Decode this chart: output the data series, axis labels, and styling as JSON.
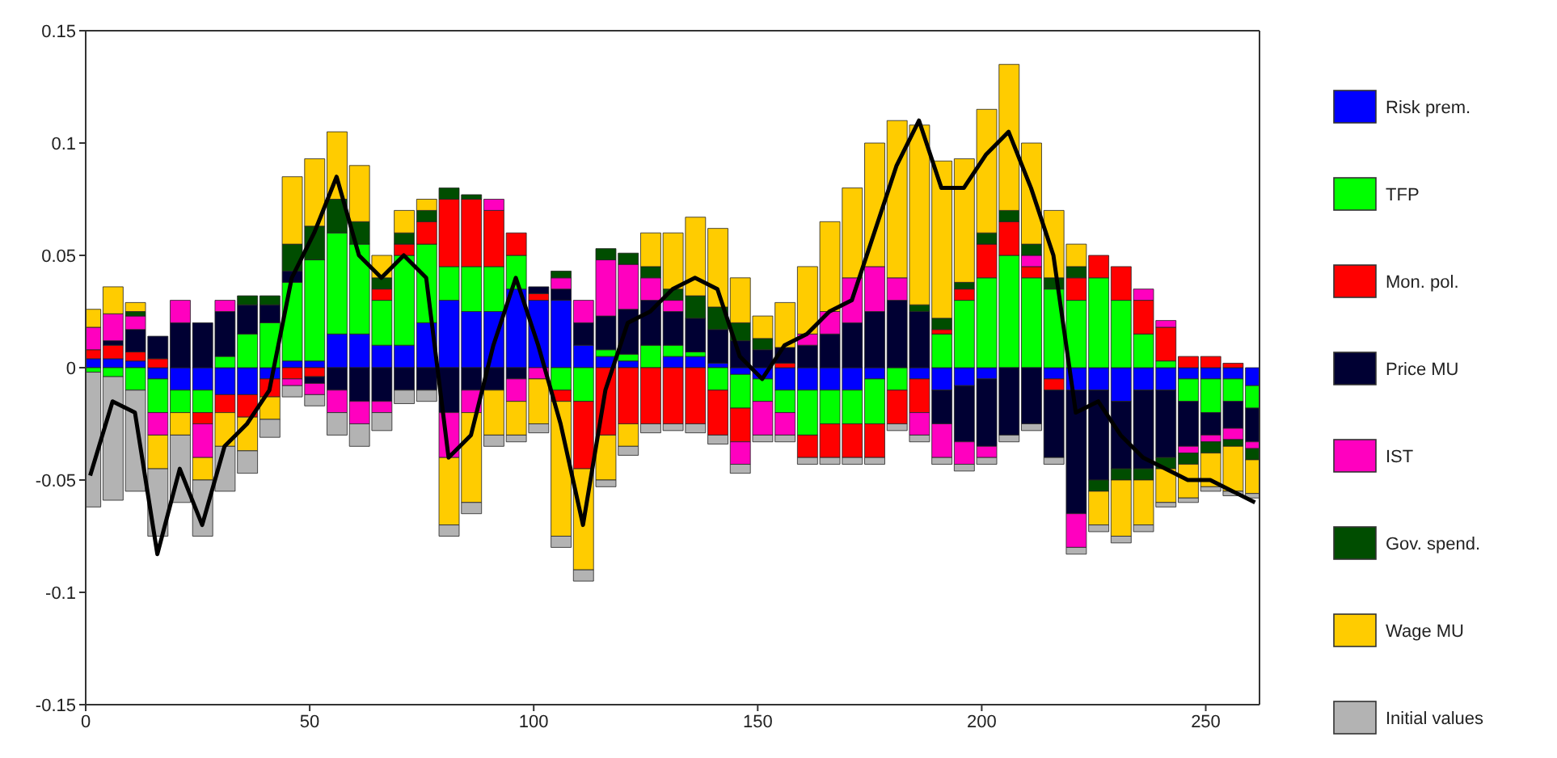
{
  "chart_data": {
    "type": "bar",
    "stacked": true,
    "legend": "right",
    "xlim": [
      0,
      262
    ],
    "xticks": [
      0,
      50,
      100,
      150,
      200,
      250
    ],
    "ylim": [
      -0.15,
      0.15
    ],
    "yticks": [
      -0.15,
      -0.1,
      -0.05,
      0,
      0.05,
      0.1,
      0.15
    ],
    "x": [
      1,
      6,
      11,
      16,
      21,
      26,
      31,
      36,
      41,
      46,
      51,
      56,
      61,
      66,
      71,
      76,
      81,
      86,
      91,
      96,
      101,
      106,
      111,
      116,
      121,
      126,
      131,
      136,
      141,
      146,
      151,
      156,
      161,
      166,
      171,
      176,
      181,
      186,
      191,
      196,
      201,
      206,
      211,
      216,
      221,
      226,
      231,
      236,
      241,
      246,
      251,
      256,
      261
    ],
    "series": [
      {
        "name": "Risk prem.",
        "color": "#0000ff",
        "values": [
          0.004,
          0.004,
          0.003,
          -0.005,
          -0.01,
          -0.01,
          -0.012,
          -0.012,
          -0.005,
          0.003,
          0.003,
          0.015,
          0.015,
          0.01,
          0.01,
          0.02,
          0.03,
          0.025,
          0.025,
          0.035,
          0.03,
          0.03,
          0.01,
          0.005,
          0.003,
          0,
          0.005,
          0.005,
          0.002,
          -0.003,
          -0.005,
          -0.01,
          -0.01,
          -0.01,
          -0.01,
          -0.005,
          0,
          -0.005,
          -0.01,
          -0.008,
          -0.005,
          0,
          0,
          -0.005,
          -0.01,
          -0.01,
          -0.015,
          -0.01,
          -0.01,
          -0.005,
          -0.005,
          -0.005,
          -0.008
        ]
      },
      {
        "name": "TFP",
        "color": "#00ff00",
        "values": [
          -0.002,
          -0.004,
          -0.01,
          -0.015,
          -0.01,
          -0.01,
          0.005,
          0.015,
          0.02,
          0.035,
          0.045,
          0.045,
          0.04,
          0.02,
          0.04,
          0.035,
          0.015,
          0.02,
          0.02,
          0.015,
          0,
          -0.01,
          -0.015,
          0.003,
          0.003,
          0.01,
          0.005,
          0.002,
          -0.01,
          -0.015,
          -0.01,
          -0.01,
          -0.02,
          -0.015,
          -0.015,
          -0.02,
          -0.01,
          0,
          0.015,
          0.03,
          0.04,
          0.05,
          0.04,
          0.035,
          0.03,
          0.04,
          0.03,
          0.015,
          0.003,
          -0.01,
          -0.015,
          -0.01,
          -0.01
        ]
      },
      {
        "name": "Mon. pol.",
        "color": "#ff0000",
        "values": [
          0.004,
          0.006,
          0.004,
          0.004,
          0,
          -0.005,
          -0.008,
          -0.01,
          -0.008,
          -0.005,
          -0.004,
          0,
          0,
          0.005,
          0.005,
          0.01,
          0.03,
          0.03,
          0.025,
          0.01,
          0.003,
          -0.005,
          -0.03,
          -0.03,
          -0.025,
          -0.025,
          -0.025,
          -0.025,
          -0.02,
          -0.015,
          0,
          0.002,
          -0.01,
          -0.015,
          -0.015,
          -0.015,
          -0.015,
          -0.015,
          0.002,
          0.005,
          0.015,
          0.015,
          0.005,
          -0.005,
          0.01,
          0.01,
          0.015,
          0.015,
          0.015,
          0.005,
          0.005,
          0.002,
          0
        ]
      },
      {
        "name": "Price MU",
        "color": "#000033",
        "values": [
          0,
          0.002,
          0.01,
          0.01,
          0.02,
          0.02,
          0.02,
          0.013,
          0.008,
          0.005,
          -0.003,
          -0.01,
          -0.015,
          -0.015,
          -0.01,
          -0.01,
          -0.02,
          -0.01,
          -0.01,
          -0.005,
          0.003,
          0.005,
          0.01,
          0.015,
          0.02,
          0.02,
          0.015,
          0.015,
          0.015,
          0.012,
          0.008,
          0.007,
          0.01,
          0.015,
          0.02,
          0.025,
          0.03,
          0.025,
          -0.015,
          -0.025,
          -0.03,
          -0.03,
          -0.025,
          -0.03,
          -0.055,
          -0.04,
          -0.03,
          -0.035,
          -0.03,
          -0.02,
          -0.01,
          -0.012,
          -0.015
        ]
      },
      {
        "name": "IST",
        "color": "#ff00bf",
        "values": [
          0.01,
          0.012,
          0.006,
          -0.01,
          0.01,
          -0.015,
          0.005,
          0,
          0,
          -0.003,
          -0.005,
          -0.01,
          -0.01,
          -0.005,
          0,
          0,
          -0.02,
          -0.01,
          0.005,
          -0.01,
          -0.005,
          0.005,
          0.01,
          0.025,
          0.02,
          0.01,
          0.005,
          0,
          0,
          -0.01,
          -0.015,
          -0.01,
          0.005,
          0.01,
          0.02,
          0.02,
          0.01,
          -0.01,
          -0.015,
          -0.01,
          -0.005,
          0,
          0.005,
          0,
          -0.015,
          0,
          0,
          0.005,
          0.003,
          -0.003,
          -0.003,
          -0.005,
          -0.003
        ]
      },
      {
        "name": "Gov. spend.",
        "color": "#004d00",
        "values": [
          0,
          0,
          0.002,
          0,
          0,
          0,
          0,
          0.004,
          0.004,
          0.012,
          0.015,
          0.015,
          0.01,
          0.005,
          0.005,
          0.005,
          0.005,
          0.002,
          0,
          0,
          0,
          0.003,
          0,
          0.005,
          0.005,
          0.005,
          0.005,
          0.01,
          0.01,
          0.008,
          0.005,
          0,
          0,
          0,
          0,
          0,
          0,
          0.003,
          0.005,
          0.003,
          0.005,
          0.005,
          0.005,
          0.005,
          0.005,
          -0.005,
          -0.005,
          -0.005,
          -0.005,
          -0.005,
          -0.005,
          -0.003,
          -0.005
        ]
      },
      {
        "name": "Wage MU",
        "color": "#ffcc00",
        "values": [
          0.008,
          0.012,
          0.004,
          -0.015,
          -0.01,
          -0.01,
          -0.015,
          -0.015,
          -0.01,
          0.03,
          0.03,
          0.03,
          0.025,
          0.01,
          0.01,
          0.005,
          -0.03,
          -0.04,
          -0.02,
          -0.015,
          -0.02,
          -0.06,
          -0.045,
          -0.02,
          -0.01,
          0.015,
          0.025,
          0.035,
          0.035,
          0.02,
          0.01,
          0.02,
          0.03,
          0.04,
          0.04,
          0.055,
          0.07,
          0.08,
          0.07,
          0.055,
          0.055,
          0.065,
          0.045,
          0.03,
          0.01,
          -0.015,
          -0.025,
          -0.02,
          -0.015,
          -0.015,
          -0.015,
          -0.02,
          -0.015
        ]
      },
      {
        "name": "Initial values",
        "color": "#b3b3b3",
        "values": [
          -0.06,
          -0.055,
          -0.045,
          -0.03,
          -0.03,
          -0.025,
          -0.02,
          -0.01,
          -0.008,
          -0.005,
          -0.005,
          -0.01,
          -0.01,
          -0.008,
          -0.006,
          -0.005,
          -0.005,
          -0.005,
          -0.005,
          -0.003,
          -0.004,
          -0.005,
          -0.005,
          -0.003,
          -0.004,
          -0.004,
          -0.003,
          -0.004,
          -0.004,
          -0.004,
          -0.003,
          -0.003,
          -0.003,
          -0.003,
          -0.003,
          -0.003,
          -0.003,
          -0.003,
          -0.003,
          -0.003,
          -0.003,
          -0.003,
          -0.003,
          -0.003,
          -0.003,
          -0.003,
          -0.003,
          -0.003,
          -0.002,
          -0.002,
          -0.002,
          -0.002,
          -0.002
        ]
      },
      {
        "type": "line",
        "color": "#000000",
        "values": [
          -0.048,
          -0.015,
          -0.02,
          -0.083,
          -0.045,
          -0.07,
          -0.035,
          -0.025,
          -0.01,
          0.04,
          0.06,
          0.085,
          0.05,
          0.04,
          0.05,
          0.04,
          -0.04,
          -0.03,
          0.01,
          0.04,
          0.01,
          -0.025,
          -0.07,
          -0.01,
          0.02,
          0.025,
          0.035,
          0.04,
          0.035,
          0.005,
          -0.005,
          0.01,
          0.015,
          0.025,
          0.03,
          0.06,
          0.09,
          0.11,
          0.08,
          0.08,
          0.095,
          0.105,
          0.08,
          0.05,
          -0.02,
          -0.015,
          -0.03,
          -0.04,
          -0.045,
          -0.05,
          -0.05,
          -0.055,
          -0.06
        ]
      }
    ]
  }
}
